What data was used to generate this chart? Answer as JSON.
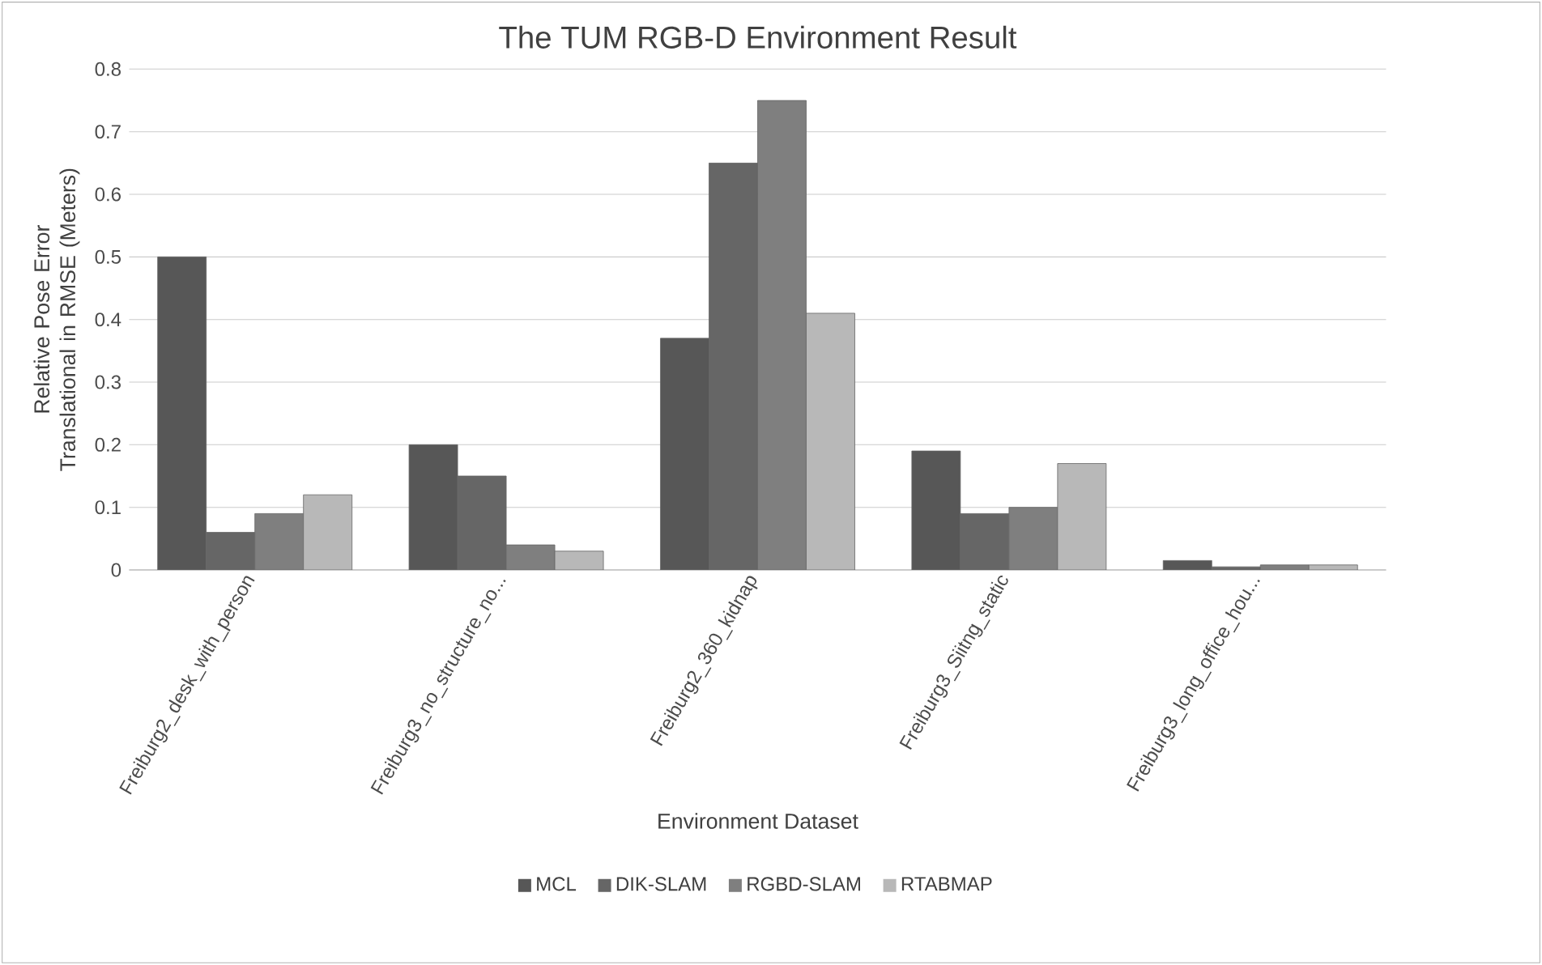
{
  "chart_data": {
    "type": "bar",
    "title": "The TUM RGB-D Environment  Result",
    "xlabel": "Environment Dataset",
    "ylabel": "Relative Pose Error Translational in RMSE (Meters)",
    "categories": [
      "Freiburg2_desk_with_person",
      "Freiburg3_no_structure_no...",
      "Freiburg2_360_kidnap",
      "Freiburg3_Siitng_static",
      "Freiburg3_long_office_hou..."
    ],
    "series": [
      {
        "name": "MCL",
        "color": "#575757",
        "values": [
          0.5,
          0.2,
          0.37,
          0.19,
          0.015
        ]
      },
      {
        "name": "DIK-SLAM",
        "color": "#666666",
        "values": [
          0.06,
          0.15,
          0.65,
          0.09,
          0.005
        ]
      },
      {
        "name": "RGBD-SLAM",
        "color": "#7f7f7f",
        "values": [
          0.09,
          0.04,
          0.75,
          0.1,
          0.008
        ]
      },
      {
        "name": "RTABMAP",
        "color": "#b8b8b8",
        "values": [
          0.12,
          0.03,
          0.41,
          0.17,
          0.008
        ]
      }
    ],
    "ylim": [
      0,
      0.8
    ],
    "yticks": [
      0,
      0.1,
      0.2,
      0.3,
      0.4,
      0.5,
      0.6,
      0.7,
      0.8
    ],
    "grid": "y",
    "legend": "bottom"
  }
}
